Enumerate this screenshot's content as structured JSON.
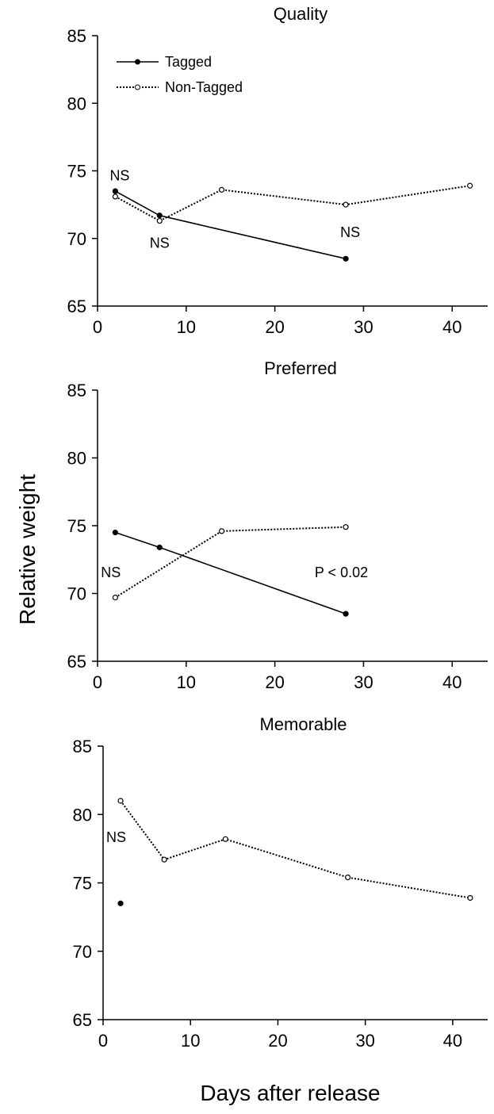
{
  "chart_data": [
    {
      "type": "line",
      "title": "Quality",
      "xlim": [
        0,
        44
      ],
      "ylim": [
        65,
        85
      ],
      "xticks": [
        0,
        10,
        20,
        30,
        40
      ],
      "yticks": [
        65,
        70,
        75,
        80,
        85
      ],
      "series": [
        {
          "name": "Tagged",
          "style": "solid",
          "marker": "filled-circle",
          "x": [
            2,
            7,
            28
          ],
          "y": [
            73.5,
            71.7,
            68.5
          ]
        },
        {
          "name": "Non-Tagged",
          "style": "dotted",
          "marker": "open-circle",
          "x": [
            2,
            7,
            14,
            28,
            42
          ],
          "y": [
            73.1,
            71.3,
            73.6,
            72.5,
            73.9
          ]
        }
      ],
      "annotations": [
        {
          "text": "NS",
          "x": 2.5,
          "y": 74.3
        },
        {
          "text": "NS",
          "x": 7,
          "y": 69.3
        },
        {
          "text": "NS",
          "x": 28.5,
          "y": 70.1
        }
      ],
      "legend": "top-left"
    },
    {
      "type": "line",
      "title": "Preferred",
      "xlim": [
        0,
        44
      ],
      "ylim": [
        65,
        85
      ],
      "xticks": [
        0,
        10,
        20,
        30,
        40
      ],
      "yticks": [
        65,
        70,
        75,
        80,
        85
      ],
      "series": [
        {
          "name": "Tagged",
          "style": "solid",
          "marker": "filled-circle",
          "x": [
            2,
            7,
            28
          ],
          "y": [
            74.5,
            73.4,
            68.5
          ]
        },
        {
          "name": "Non-Tagged",
          "style": "dotted",
          "marker": "open-circle",
          "x": [
            2,
            14,
            28
          ],
          "y": [
            69.7,
            74.6,
            74.9
          ]
        }
      ],
      "annotations": [
        {
          "text": "NS",
          "x": 1.5,
          "y": 71.2
        },
        {
          "text": "P < 0.02",
          "x": 27.5,
          "y": 71.2
        }
      ]
    },
    {
      "type": "line",
      "title": "Memorable",
      "xlim": [
        0,
        44
      ],
      "ylim": [
        65,
        85
      ],
      "xticks": [
        0,
        10,
        20,
        30,
        40
      ],
      "yticks": [
        65,
        70,
        75,
        80,
        85
      ],
      "series": [
        {
          "name": "Tagged",
          "style": "solid",
          "marker": "filled-circle",
          "x": [
            2
          ],
          "y": [
            73.5
          ]
        },
        {
          "name": "Non-Tagged",
          "style": "dotted",
          "marker": "open-circle",
          "x": [
            2,
            7,
            14,
            28,
            42
          ],
          "y": [
            81.0,
            76.7,
            78.2,
            75.4,
            73.9
          ]
        }
      ],
      "annotations": [
        {
          "text": "NS",
          "x": 1.5,
          "y": 78.0
        }
      ]
    }
  ],
  "ylabel": "Relative weight",
  "xlabel": "Days after release",
  "colors": {
    "line": "#000000",
    "background": "#ffffff"
  }
}
